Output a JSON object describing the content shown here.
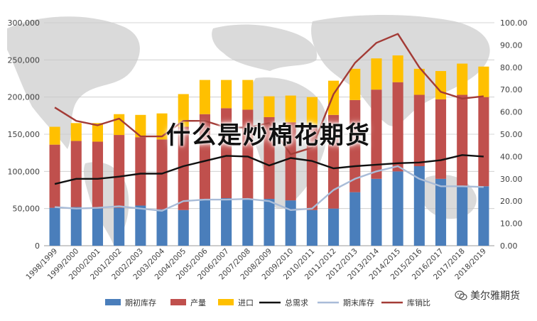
{
  "overlay": {
    "title": "什么是炒棉花期货"
  },
  "watermark": {
    "text": "美尔雅期货",
    "icon": "wechat-icon"
  },
  "chart_data": {
    "type": "bar",
    "title": "",
    "xlabel": "",
    "ylabel": "",
    "ylim": [
      0,
      300000
    ],
    "y2lim": [
      0,
      100
    ],
    "left_ticks": [
      "0",
      "50,000",
      "100,000",
      "150,000",
      "200,000",
      "250,000",
      "300,000"
    ],
    "right_ticks": [
      "0.00",
      "10.00",
      "20.00",
      "30.00",
      "40.00",
      "50.00",
      "60.00",
      "70.00",
      "80.00",
      "90.00",
      "100.00"
    ],
    "grid": true,
    "legend_position": "bottom",
    "categories": [
      "1998/1999",
      "1999/2000",
      "2000/2001",
      "2001/2002",
      "2002/2003",
      "2003/2004",
      "2004/2005",
      "2005/2006",
      "2006/2007",
      "2007/2008",
      "2008/2009",
      "2009/2010",
      "2010/2011",
      "2011/2012",
      "2012/2013",
      "2013/2014",
      "2014/2015",
      "2015/2016",
      "2016/2017",
      "2017/2018",
      "2018/2019"
    ],
    "stacked_series": [
      {
        "name": "期初库存",
        "color": "#4a7ebb",
        "values": [
          51000,
          52000,
          50000,
          51000,
          54000,
          49000,
          48000,
          63000,
          64000,
          63000,
          63000,
          61000,
          48000,
          50000,
          72000,
          90000,
          100000,
          107000,
          90000,
          80000,
          80000
        ]
      },
      {
        "name": "产量",
        "color": "#c0504d",
        "values": [
          85000,
          89000,
          90000,
          98000,
          92000,
          94000,
          112000,
          114000,
          121000,
          120000,
          110000,
          105000,
          112000,
          126000,
          124000,
          120000,
          120000,
          96000,
          107000,
          123000,
          120000
        ]
      },
      {
        "name": "进口",
        "color": "#ffc000",
        "values": [
          24000,
          24000,
          25000,
          28000,
          30000,
          35000,
          44000,
          46000,
          38000,
          40000,
          28000,
          36000,
          40000,
          46000,
          42000,
          42000,
          36000,
          35000,
          38000,
          42000,
          41000
        ]
      }
    ],
    "line_series": [
      {
        "name": "总需求",
        "color": "#111111",
        "axis": "left",
        "values": [
          83000,
          90000,
          90000,
          93000,
          97000,
          97000,
          107000,
          114000,
          121000,
          120000,
          108000,
          118000,
          114000,
          104000,
          107000,
          109000,
          111000,
          112000,
          115000,
          122000,
          120000
        ]
      },
      {
        "name": "期末库存",
        "color": "#a9bcd8",
        "axis": "left",
        "values": [
          52000,
          50000,
          51000,
          53000,
          50000,
          47000,
          60000,
          62000,
          62000,
          63000,
          60000,
          48000,
          50000,
          75000,
          90000,
          100000,
          107000,
          90000,
          80000,
          80000,
          79000
        ]
      },
      {
        "name": "库销比",
        "color": "#a33b36",
        "axis": "right",
        "values": [
          62,
          56,
          54,
          57,
          49,
          49,
          56,
          56,
          53,
          53,
          55,
          41,
          44,
          68,
          82,
          91,
          95,
          80,
          69,
          66,
          67
        ]
      }
    ]
  }
}
